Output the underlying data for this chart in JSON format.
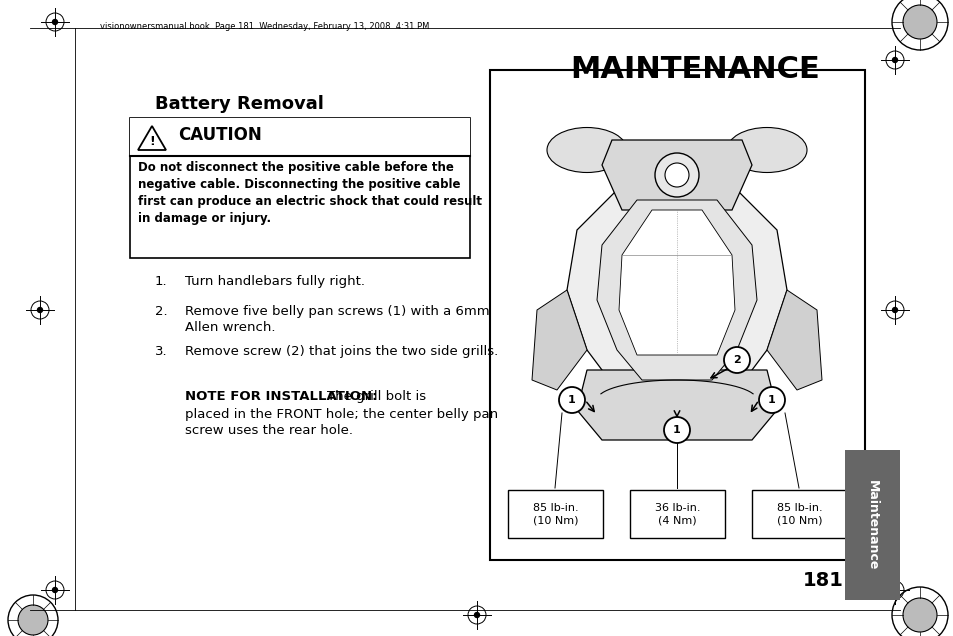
{
  "page_header_text": "visionownersmanual.book  Page 181  Wednesday, February 13, 2008  4:31 PM",
  "title": "MAINTENANCE",
  "section_title": "Battery Removal",
  "caution_title": "CAUTION",
  "caution_body": "Do not disconnect the positive cable before the\nnegative cable. Disconnecting the positive cable\nfirst can produce an electric shock that could result\nin damage or injury.",
  "steps": [
    "Turn handlebars fully right.",
    "Remove five belly pan screws (1) with a 6mm\nAllen wrench.",
    "Remove screw (2) that joins the two side grills."
  ],
  "note_bold": "NOTE FOR INSTALLATION:",
  "note_rest": " The grill bolt is\nplaced in the FRONT hole; the center belly pan\nscrew uses the rear hole.",
  "label_left": "85 lb-in.\n(10 Nm)",
  "label_center": "36 lb-in.\n(4 Nm)",
  "label_right": "85 lb-in.\n(10 Nm)",
  "sidebar_text": "Maintenance",
  "page_number": "181",
  "bg_color": "#ffffff",
  "sidebar_color": "#666666",
  "sidebar_text_color": "#ffffff"
}
